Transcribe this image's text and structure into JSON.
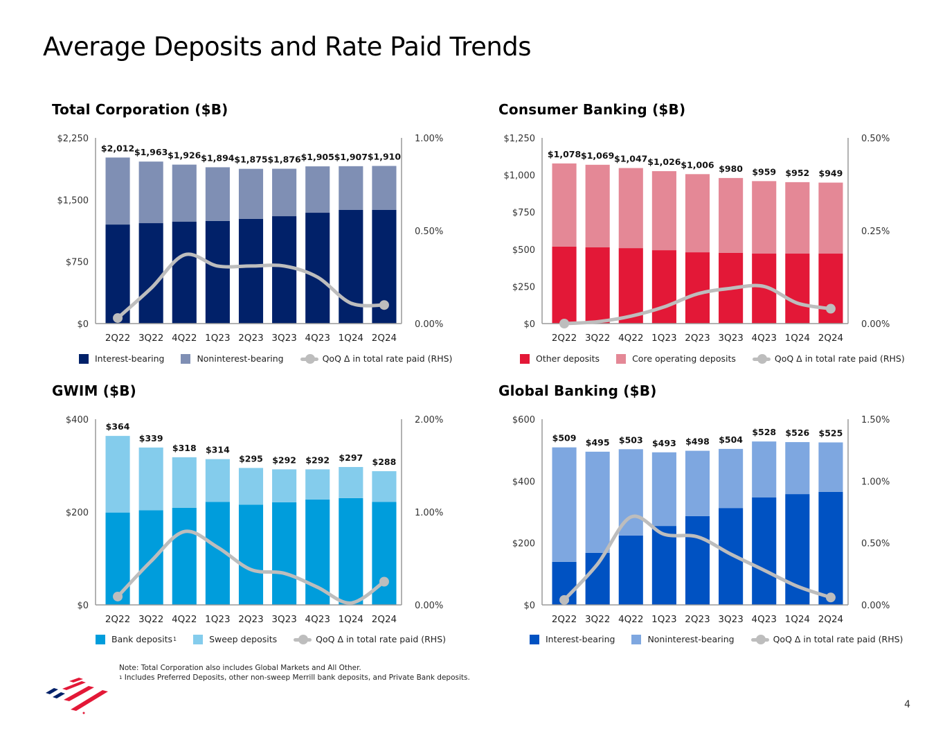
{
  "page": {
    "title": "Average Deposits and Rate Paid Trends",
    "page_number": "4",
    "notes": {
      "line1": "Note: Total Corporation also includes Global Markets and All Other.",
      "line2_marker": "1",
      "line2": " Includes Preferred Deposits, other non-sweep Merrill bank deposits, and Private Bank deposits."
    },
    "logo": "bank-flag-logo"
  },
  "chart_data": [
    {
      "id": "total-corporation",
      "type": "bar",
      "stacked": true,
      "title": "Total Corporation ($B)",
      "categories": [
        "2Q22",
        "3Q22",
        "4Q22",
        "1Q23",
        "2Q23",
        "3Q23",
        "4Q23",
        "1Q24",
        "2Q24"
      ],
      "series": [
        {
          "name": "Interest-bearing",
          "color": "#012169",
          "values": [
            1200,
            1217,
            1234,
            1243,
            1268,
            1301,
            1343,
            1377,
            1377
          ]
        },
        {
          "name": "Noninterest-bearing",
          "color": "#7f8fb4",
          "values": [
            812,
            746,
            692,
            651,
            607,
            575,
            562,
            530,
            533
          ]
        }
      ],
      "totals": [
        2012,
        1963,
        1926,
        1894,
        1875,
        1876,
        1905,
        1907,
        1910
      ],
      "total_labels": [
        "$2,012",
        "$1,963",
        "$1,926",
        "$1,894",
        "$1,875",
        "$1,876",
        "$1,905",
        "$1,907",
        "$1,910"
      ],
      "line": {
        "name": "QoQ Δ in total rate paid (RHS)",
        "color": "#bdbdbd",
        "values": [
          0.03,
          0.19,
          0.37,
          0.31,
          0.31,
          0.31,
          0.25,
          0.11,
          0.1
        ]
      },
      "ylim": [
        0,
        2250
      ],
      "yticks": [
        0,
        750,
        1500,
        2250
      ],
      "ytick_labels": [
        "$0",
        "$750",
        "$1,500",
        "$2,250"
      ],
      "y2lim": [
        0,
        1.0
      ],
      "y2ticks": [
        0,
        0.5,
        1.0
      ],
      "y2tick_labels": [
        "0.00%",
        "0.50%",
        "1.00%"
      ],
      "legend": [
        {
          "label": "Interest-bearing",
          "kind": "box",
          "color": "#012169"
        },
        {
          "label": "Noninterest-bearing",
          "kind": "box",
          "color": "#7f8fb4"
        },
        {
          "label": "QoQ Δ in total rate paid (RHS)",
          "kind": "line",
          "color": "#bdbdbd"
        }
      ],
      "legend_position": "bottom"
    },
    {
      "id": "consumer-banking",
      "type": "bar",
      "stacked": true,
      "title": "Consumer Banking ($B)",
      "categories": [
        "2Q22",
        "3Q22",
        "4Q22",
        "1Q23",
        "2Q23",
        "3Q23",
        "4Q23",
        "1Q24",
        "2Q24"
      ],
      "series": [
        {
          "name": "Other deposits",
          "color": "#e31837",
          "values": [
            518,
            513,
            508,
            494,
            480,
            476,
            471,
            471,
            471
          ]
        },
        {
          "name": "Core operating deposits",
          "color": "#e48896",
          "values": [
            560,
            556,
            539,
            532,
            526,
            504,
            488,
            481,
            478
          ]
        }
      ],
      "totals": [
        1078,
        1069,
        1047,
        1026,
        1006,
        980,
        959,
        952,
        949
      ],
      "total_labels": [
        "$1,078",
        "$1,069",
        "$1,047",
        "$1,026",
        "$1,006",
        "$980",
        "$959",
        "$952",
        "$949"
      ],
      "line": {
        "name": "QoQ Δ in total rate paid (RHS)",
        "color": "#bdbdbd",
        "values": [
          0.0,
          0.005,
          0.02,
          0.045,
          0.08,
          0.095,
          0.1,
          0.055,
          0.04
        ]
      },
      "ylim": [
        0,
        1250
      ],
      "yticks": [
        0,
        250,
        500,
        750,
        1000,
        1250
      ],
      "ytick_labels": [
        "$0",
        "$250",
        "$500",
        "$750",
        "$1,000",
        "$1,250"
      ],
      "y2lim": [
        0,
        0.5
      ],
      "y2ticks": [
        0,
        0.25,
        0.5
      ],
      "y2tick_labels": [
        "0.00%",
        "0.25%",
        "0.50%"
      ],
      "legend": [
        {
          "label": "Other deposits",
          "kind": "box",
          "color": "#e31837"
        },
        {
          "label": "Core operating deposits",
          "kind": "box",
          "color": "#e48896"
        },
        {
          "label": "QoQ Δ in total rate paid (RHS)",
          "kind": "line",
          "color": "#bdbdbd"
        }
      ],
      "legend_position": "bottom"
    },
    {
      "id": "gwim",
      "type": "bar",
      "stacked": true,
      "title": "GWIM ($B)",
      "categories": [
        "2Q22",
        "3Q22",
        "4Q22",
        "1Q23",
        "2Q23",
        "3Q23",
        "4Q23",
        "1Q24",
        "2Q24"
      ],
      "series": [
        {
          "name": "Bank deposits",
          "color": "#009ddc",
          "values": [
            199,
            204,
            209,
            222,
            216,
            221,
            227,
            230,
            222
          ]
        },
        {
          "name": "Sweep deposits",
          "color": "#84ccec",
          "values": [
            165,
            135,
            109,
            92,
            79,
            71,
            65,
            67,
            66
          ]
        }
      ],
      "totals": [
        364,
        339,
        318,
        314,
        295,
        292,
        292,
        297,
        288
      ],
      "total_labels": [
        "$364",
        "$339",
        "$318",
        "$314",
        "$295",
        "$292",
        "$292",
        "$297",
        "$288"
      ],
      "line": {
        "name": "QoQ Δ in total rate paid (RHS)",
        "color": "#bdbdbd",
        "values": [
          0.09,
          0.47,
          0.79,
          0.62,
          0.38,
          0.34,
          0.19,
          0.02,
          0.25
        ]
      },
      "ylim": [
        0,
        400
      ],
      "yticks": [
        0,
        200,
        400
      ],
      "ytick_labels": [
        "$0",
        "$200",
        "$400"
      ],
      "y2lim": [
        0,
        2.0
      ],
      "y2ticks": [
        0,
        1.0,
        2.0
      ],
      "y2tick_labels": [
        "0.00%",
        "1.00%",
        "2.00%"
      ],
      "legend": [
        {
          "label": "Bank deposits",
          "sup": "1",
          "kind": "box",
          "color": "#009ddc"
        },
        {
          "label": "Sweep deposits",
          "kind": "box",
          "color": "#84ccec"
        },
        {
          "label": "QoQ Δ in total rate paid (RHS)",
          "kind": "line",
          "color": "#bdbdbd"
        }
      ],
      "legend_position": "bottom"
    },
    {
      "id": "global-banking",
      "type": "bar",
      "stacked": true,
      "title": "Global Banking ($B)",
      "categories": [
        "2Q22",
        "3Q22",
        "4Q22",
        "1Q23",
        "2Q23",
        "3Q23",
        "4Q23",
        "1Q24",
        "2Q24"
      ],
      "series": [
        {
          "name": "Interest-bearing",
          "color": "#0052c2",
          "values": [
            139,
            168,
            224,
            255,
            287,
            313,
            347,
            358,
            365
          ]
        },
        {
          "name": "Noninterest-bearing",
          "color": "#7ea7e0",
          "values": [
            370,
            327,
            279,
            238,
            211,
            191,
            181,
            168,
            160
          ]
        }
      ],
      "totals": [
        509,
        495,
        503,
        493,
        498,
        504,
        528,
        526,
        525
      ],
      "total_labels": [
        "$509",
        "$495",
        "$503",
        "$493",
        "$498",
        "$504",
        "$528",
        "$526",
        "$525"
      ],
      "line": {
        "name": "QoQ Δ in total rate paid (RHS)",
        "color": "#bdbdbd",
        "values": [
          0.04,
          0.33,
          0.71,
          0.57,
          0.55,
          0.41,
          0.28,
          0.15,
          0.06
        ]
      },
      "ylim": [
        0,
        600
      ],
      "yticks": [
        0,
        200,
        400,
        600
      ],
      "ytick_labels": [
        "$0",
        "$200",
        "$400",
        "$600"
      ],
      "y2lim": [
        0,
        1.5
      ],
      "y2ticks": [
        0,
        0.5,
        1.0,
        1.5
      ],
      "y2tick_labels": [
        "0.00%",
        "0.50%",
        "1.00%",
        "1.50%"
      ],
      "legend": [
        {
          "label": "Interest-bearing",
          "kind": "box",
          "color": "#0052c2"
        },
        {
          "label": "Noninterest-bearing",
          "kind": "box",
          "color": "#7ea7e0"
        },
        {
          "label": "QoQ Δ in total rate paid (RHS)",
          "kind": "line",
          "color": "#bdbdbd"
        }
      ],
      "legend_position": "bottom"
    }
  ]
}
